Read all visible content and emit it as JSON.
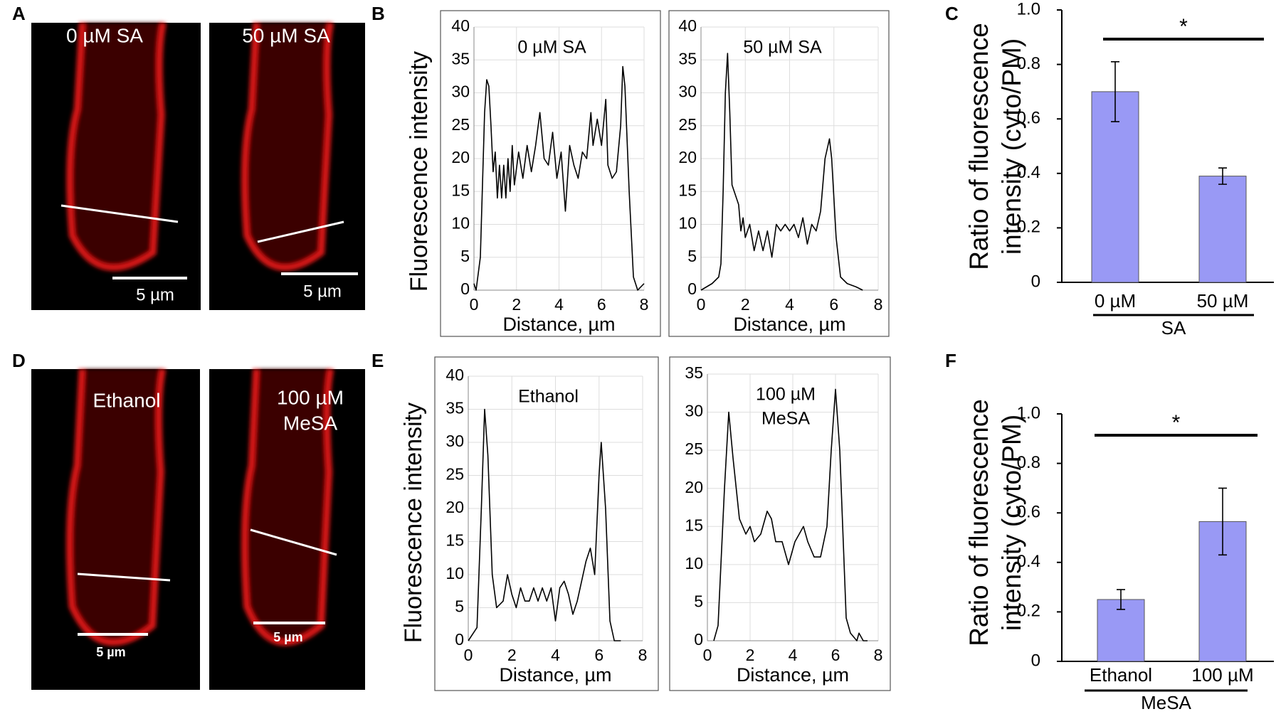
{
  "panel_labels": [
    "A",
    "B",
    "C",
    "D",
    "E",
    "F"
  ],
  "micrographs": [
    {
      "label": [
        "0 µM SA"
      ],
      "scale_bar": "5 µm"
    },
    {
      "label": [
        "50 µM SA"
      ],
      "scale_bar": "5 µm"
    },
    {
      "label": [
        "Ethanol"
      ],
      "scale_bar": "5 µm"
    },
    {
      "label": [
        "100 µM",
        "MeSA"
      ],
      "scale_bar": "5 µm"
    }
  ],
  "chart_data": [
    {
      "type": "line",
      "title": [
        "0 µM SA"
      ],
      "xlabel": "Distance, µm",
      "ylabel": "Fluorescence intensity",
      "x": [
        0,
        0.1,
        0.3,
        0.5,
        0.6,
        0.7,
        0.8,
        0.9,
        1.0,
        1.1,
        1.2,
        1.3,
        1.4,
        1.5,
        1.6,
        1.7,
        1.8,
        1.9,
        2.1,
        2.3,
        2.5,
        2.7,
        2.9,
        3.1,
        3.3,
        3.5,
        3.7,
        3.9,
        4.1,
        4.3,
        4.5,
        4.7,
        4.9,
        5.1,
        5.3,
        5.5,
        5.6,
        5.8,
        6.0,
        6.2,
        6.3,
        6.5,
        6.7,
        6.9,
        7.0,
        7.1,
        7.3,
        7.5,
        7.7,
        8.0
      ],
      "values": [
        1,
        0,
        5,
        27,
        32,
        31,
        25,
        18,
        21,
        14,
        19,
        14,
        19,
        14,
        20,
        15,
        22,
        16,
        21,
        17,
        22,
        18,
        22,
        27,
        20,
        19,
        24,
        17,
        21,
        12,
        22,
        19,
        17,
        21,
        20,
        27,
        22,
        26,
        22,
        29,
        19,
        17,
        18,
        25,
        34,
        31,
        15,
        2,
        0,
        1
      ],
      "color": "#000000",
      "xlim": [
        0,
        8
      ],
      "ylim": [
        0,
        40
      ],
      "xticks": [
        0,
        2,
        4,
        6,
        8
      ],
      "yticks": [
        0,
        5,
        10,
        15,
        20,
        25,
        30,
        35,
        40
      ],
      "grid": true
    },
    {
      "type": "line",
      "title": [
        "50 µM SA"
      ],
      "xlabel": "Distance, µm",
      "x": [
        0,
        0.5,
        0.8,
        0.9,
        1.0,
        1.1,
        1.2,
        1.3,
        1.4,
        1.5,
        1.7,
        1.8,
        1.9,
        2.0,
        2.2,
        2.4,
        2.6,
        2.8,
        3.0,
        3.2,
        3.4,
        3.6,
        3.8,
        4.0,
        4.2,
        4.4,
        4.6,
        4.8,
        5.0,
        5.2,
        5.4,
        5.6,
        5.8,
        5.9,
        6.1,
        6.3,
        6.6,
        7.0,
        7.3
      ],
      "values": [
        0,
        1,
        2,
        4,
        15,
        30,
        36,
        27,
        16,
        15,
        13,
        9,
        11,
        8,
        10,
        6,
        9,
        6,
        9,
        5,
        10,
        9,
        10,
        9,
        10,
        8,
        11,
        7,
        10,
        9,
        12,
        20,
        23,
        20,
        8,
        2,
        1,
        0.5,
        0
      ],
      "color": "#000000",
      "xlim": [
        0,
        8
      ],
      "ylim": [
        0,
        40
      ],
      "xticks": [
        0,
        2,
        4,
        6,
        8
      ],
      "yticks": [
        0,
        5,
        10,
        15,
        20,
        25,
        30,
        35,
        40
      ],
      "grid": true
    },
    {
      "type": "bar",
      "ylabel": [
        "Ratio of fluorescence",
        "intensity (cyto/PM)"
      ],
      "categories": [
        "0 µM",
        "50 µM"
      ],
      "values": [
        0.7,
        0.39
      ],
      "errors": [
        0.11,
        0.03
      ],
      "color": "#9999f5",
      "group_label": "SA",
      "significance": "*",
      "ylim": [
        0,
        1
      ],
      "yticks": [
        0,
        0.2,
        0.4,
        0.6,
        0.8,
        {
          "value": 1,
          "label": "1.0"
        }
      ]
    },
    {
      "type": "line",
      "title": [
        "Ethanol"
      ],
      "xlabel": "Distance, µm",
      "ylabel": "Fluorescence intensity",
      "x": [
        0,
        0.2,
        0.4,
        0.6,
        0.75,
        0.9,
        1.1,
        1.3,
        1.6,
        1.8,
        2.0,
        2.2,
        2.4,
        2.6,
        2.8,
        3.0,
        3.2,
        3.4,
        3.6,
        3.8,
        4.0,
        4.2,
        4.4,
        4.6,
        4.8,
        5.0,
        5.2,
        5.4,
        5.6,
        5.8,
        6.0,
        6.1,
        6.3,
        6.5,
        6.7,
        7.0
      ],
      "values": [
        0,
        1,
        2,
        20,
        35,
        28,
        10,
        5,
        6,
        10,
        7,
        5,
        8,
        6,
        6,
        8,
        6,
        8,
        6,
        8,
        3,
        8,
        9,
        7,
        4,
        6,
        9,
        12,
        14,
        10,
        25,
        30,
        20,
        3,
        0,
        0
      ],
      "color": "#000000",
      "xlim": [
        0,
        8
      ],
      "ylim": [
        0,
        40
      ],
      "xticks": [
        0,
        2,
        4,
        6,
        8
      ],
      "yticks": [
        0,
        5,
        10,
        15,
        20,
        25,
        30,
        35,
        40
      ],
      "grid": true
    },
    {
      "type": "line",
      "title": [
        "100 µM",
        "MeSA"
      ],
      "xlabel": "Distance, µm",
      "x": [
        0.3,
        0.5,
        0.8,
        1.0,
        1.2,
        1.5,
        1.8,
        2.0,
        2.2,
        2.5,
        2.8,
        3.0,
        3.2,
        3.5,
        3.8,
        4.1,
        4.5,
        4.7,
        5.0,
        5.3,
        5.6,
        5.8,
        6.0,
        6.2,
        6.5,
        6.7,
        7.0,
        7.1,
        7.3,
        7.5
      ],
      "values": [
        0,
        2,
        20,
        30,
        24,
        16,
        14,
        15,
        13,
        14,
        17,
        16,
        13,
        13,
        10,
        13,
        15,
        13,
        11,
        11,
        15,
        25,
        33,
        25,
        3,
        1,
        0,
        1,
        0,
        0
      ],
      "color": "#000000",
      "xlim": [
        0,
        8
      ],
      "ylim": [
        0,
        35
      ],
      "xticks": [
        0,
        2,
        4,
        6,
        8
      ],
      "yticks": [
        0,
        5,
        10,
        15,
        20,
        25,
        30,
        35
      ],
      "grid": true
    },
    {
      "type": "bar",
      "ylabel": [
        "Ratio of fluorescence",
        "intensity (cyto/PM)"
      ],
      "categories": [
        "Ethanol",
        "100 µM"
      ],
      "values": [
        0.25,
        0.565
      ],
      "errors": [
        0.04,
        0.135
      ],
      "color": "#9999f5",
      "group_label": "MeSA",
      "significance": "*",
      "ylim": [
        0,
        1
      ],
      "yticks": [
        0,
        0.2,
        0.4,
        0.6,
        0.8,
        {
          "value": 1,
          "label": "1.0"
        }
      ]
    }
  ]
}
